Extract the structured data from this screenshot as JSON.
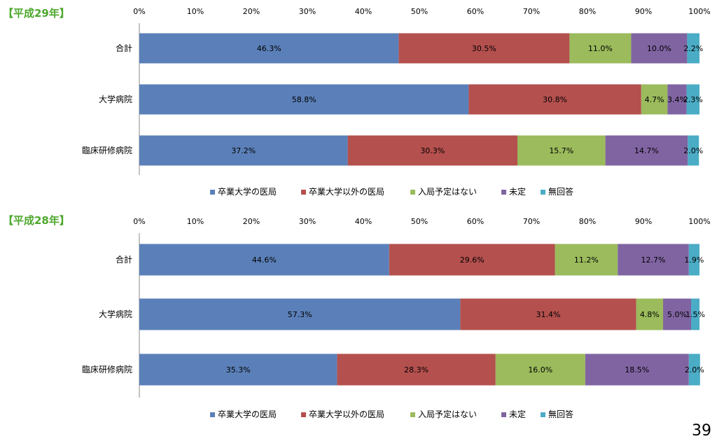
{
  "page_number": "39",
  "colors": {
    "series": [
      "#5b80b9",
      "#b4504e",
      "#9bbb5c",
      "#8064a2",
      "#4bacc6"
    ],
    "year_label": "#4ea72e"
  },
  "chart_data": [
    {
      "type": "bar",
      "orientation": "horizontal",
      "stacked": true,
      "title": "【平成29年】",
      "xlim": [
        0,
        100
      ],
      "xticks": [
        "0%",
        "10%",
        "20%",
        "30%",
        "40%",
        "50%",
        "60%",
        "70%",
        "80%",
        "90%",
        "100%"
      ],
      "categories": [
        "合計",
        "大学病院",
        "臨床研修病院"
      ],
      "series": [
        {
          "name": "卒業大学の医局",
          "values": [
            46.3,
            58.8,
            37.2
          ],
          "labels": [
            "46.3%",
            "58.8%",
            "37.2%"
          ]
        },
        {
          "name": "卒業大学以外の医局",
          "values": [
            30.5,
            30.8,
            30.3
          ],
          "labels": [
            "30.5%",
            "30.8%",
            "30.3%"
          ]
        },
        {
          "name": "入局予定はない",
          "values": [
            11.0,
            4.7,
            15.7
          ],
          "labels": [
            "11.0%",
            "4.7%",
            "15.7%"
          ]
        },
        {
          "name": "未定",
          "values": [
            10.0,
            3.4,
            14.7
          ],
          "labels": [
            "10.0%",
            "3.4%",
            "14.7%"
          ]
        },
        {
          "name": "無回答",
          "values": [
            2.2,
            2.3,
            2.0
          ],
          "labels": [
            "2.2%",
            "2.3%",
            "2.0%"
          ]
        }
      ],
      "legend": "bottom"
    },
    {
      "type": "bar",
      "orientation": "horizontal",
      "stacked": true,
      "title": "【平成28年】",
      "xlim": [
        0,
        100
      ],
      "xticks": [
        "0%",
        "10%",
        "20%",
        "30%",
        "40%",
        "50%",
        "60%",
        "70%",
        "80%",
        "90%",
        "100%"
      ],
      "categories": [
        "合計",
        "大学病院",
        "臨床研修病院"
      ],
      "series": [
        {
          "name": "卒業大学の医局",
          "values": [
            44.6,
            57.3,
            35.3
          ],
          "labels": [
            "44.6%",
            "57.3%",
            "35.3%"
          ]
        },
        {
          "name": "卒業大学以外の医局",
          "values": [
            29.6,
            31.4,
            28.3
          ],
          "labels": [
            "29.6%",
            "31.4%",
            "28.3%"
          ]
        },
        {
          "name": "入局予定はない",
          "values": [
            11.2,
            4.8,
            16.0
          ],
          "labels": [
            "11.2%",
            "4.8%",
            "16.0%"
          ]
        },
        {
          "name": "未定",
          "values": [
            12.7,
            5.0,
            18.5
          ],
          "labels": [
            "12.7%",
            "5.0%",
            "18.5%"
          ]
        },
        {
          "name": "無回答",
          "values": [
            1.9,
            1.5,
            2.0
          ],
          "labels": [
            "1.9%",
            "1.5%",
            "2.0%"
          ]
        }
      ],
      "legend": "bottom"
    }
  ]
}
